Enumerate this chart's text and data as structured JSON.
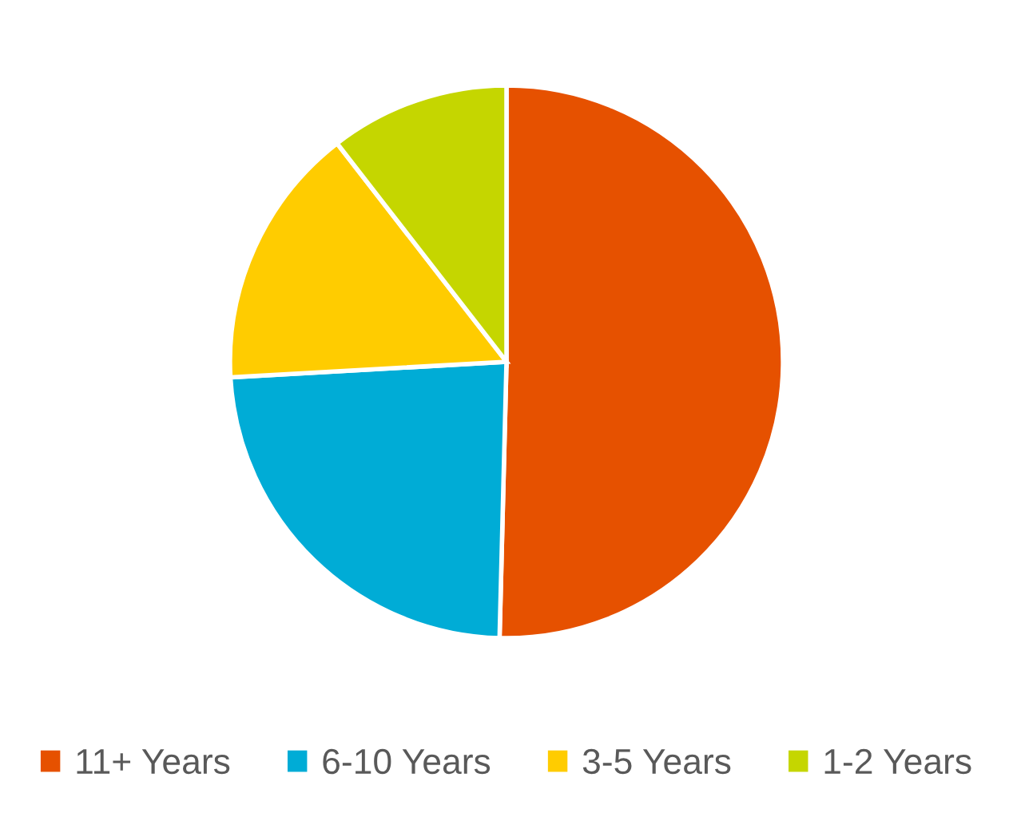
{
  "chart_data": {
    "type": "pie",
    "categories": [
      "11+ Years",
      "6-10 Years",
      "3-5 Years",
      "1-2 Years"
    ],
    "values": [
      50.4,
      23.7,
      15.4,
      10.5
    ],
    "colors": [
      "#e65100",
      "#00acd6",
      "#ffcc00",
      "#c5d600"
    ],
    "legend": "bottom"
  }
}
